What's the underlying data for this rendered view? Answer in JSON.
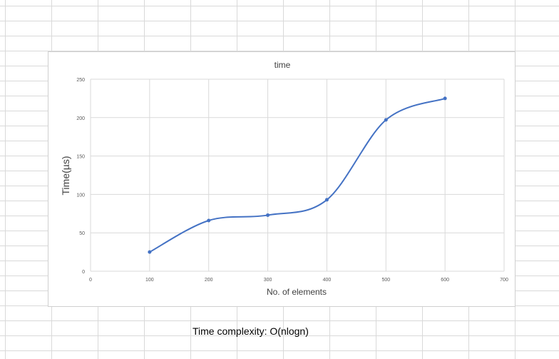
{
  "chart_data": {
    "type": "line",
    "title": "time",
    "xlabel": "No. of elements",
    "ylabel": "Time(µs)",
    "xlim": [
      0,
      700
    ],
    "ylim": [
      0,
      250
    ],
    "x_ticks": [
      0,
      100,
      200,
      300,
      400,
      500,
      600,
      700
    ],
    "y_ticks": [
      0,
      50,
      100,
      150,
      200,
      250
    ],
    "grid": true,
    "smooth": true,
    "series": [
      {
        "color": "#4472c4",
        "x": [
          100,
          200,
          300,
          400,
          500,
          600
        ],
        "y": [
          25,
          66,
          73,
          93,
          197,
          225
        ]
      }
    ]
  },
  "sheet": {
    "caption": "Time complexity: O(nlogn)"
  }
}
